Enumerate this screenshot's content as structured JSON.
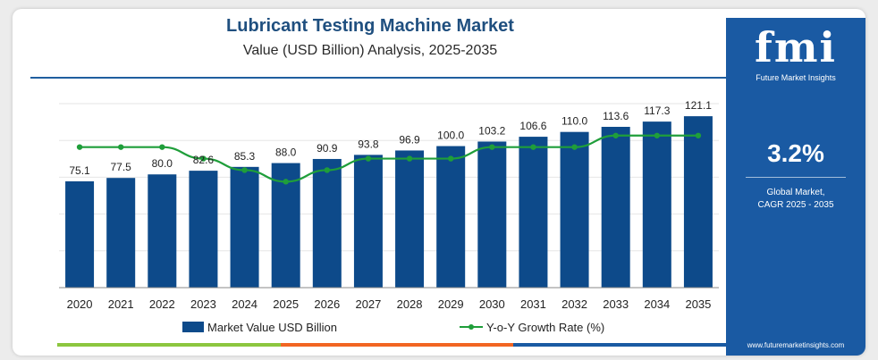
{
  "header": {
    "title": "Lubricant Testing Machine Market",
    "subtitle": "Value (USD Billion) Analysis, 2025-2035"
  },
  "sidebar": {
    "logo": "fmi",
    "logo_tagline": "Future Market Insights",
    "cagr_value": "3.2%",
    "cagr_label_1": "Global Market,",
    "cagr_label_2": "CAGR 2025 - 2035",
    "url": "www.futuremarketinsights.com"
  },
  "legend": {
    "bar_label": "Market Value USD Billion",
    "line_label": "Y-o-Y Growth Rate (%)"
  },
  "colors": {
    "bar": "#0d4a8a",
    "line": "#1f9e3a",
    "accent": "#1a5aa3",
    "bottom_green": "#8cc63f",
    "bottom_orange": "#f26522"
  },
  "chart_data": {
    "type": "bar",
    "categories": [
      "2020",
      "2021",
      "2022",
      "2023",
      "2024",
      "2025",
      "2026",
      "2027",
      "2028",
      "2029",
      "2030",
      "2031",
      "2032",
      "2033",
      "2034",
      "2035"
    ],
    "series": [
      {
        "name": "Market Value USD Billion",
        "type": "bar",
        "values": [
          75.1,
          77.5,
          80.0,
          82.6,
          85.3,
          88.0,
          90.9,
          93.8,
          96.9,
          100.0,
          103.2,
          106.6,
          110.0,
          113.6,
          117.3,
          121.1
        ],
        "labels": [
          "75.1",
          "77.5",
          "80.0",
          "82.6",
          "85.3",
          "88.0",
          "90.9",
          "93.8",
          "96.9",
          "100.0",
          "103.2",
          "106.6",
          "110.0",
          "113.6",
          "117.3",
          "121.1"
        ]
      },
      {
        "name": "Y-o-Y Growth Rate (%)",
        "type": "line",
        "values": [
          3.2,
          3.2,
          3.2,
          3.1,
          3.0,
          2.9,
          3.0,
          3.1,
          3.1,
          3.1,
          3.2,
          3.2,
          3.2,
          3.3,
          3.3,
          3.3
        ]
      }
    ],
    "ylim": [
      0,
      130
    ],
    "grid": true,
    "legend_position": "bottom"
  }
}
